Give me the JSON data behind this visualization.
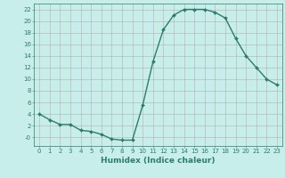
{
  "x": [
    0,
    1,
    2,
    3,
    4,
    5,
    6,
    7,
    8,
    9,
    10,
    11,
    12,
    13,
    14,
    15,
    16,
    17,
    18,
    19,
    20,
    21,
    22,
    23
  ],
  "y": [
    4,
    3,
    2.2,
    2.2,
    1.2,
    1.0,
    0.5,
    -0.3,
    -0.5,
    -0.5,
    5.5,
    13,
    18.5,
    21,
    22,
    22,
    22,
    21.5,
    20.5,
    17,
    14,
    12,
    10,
    9
  ],
  "line_color": "#2d7d6b",
  "marker_color": "#2d7d6b",
  "bg_color": "#c8eeeb",
  "grid_color": "#b0b0b0",
  "xlabel": "Humidex (Indice chaleur)",
  "xlim": [
    -0.5,
    23.5
  ],
  "ylim": [
    -1.5,
    23
  ],
  "yticks": [
    0,
    2,
    4,
    6,
    8,
    10,
    12,
    14,
    16,
    18,
    20,
    22
  ],
  "ytick_labels": [
    "-0",
    "2",
    "4",
    "6",
    "8",
    "10",
    "12",
    "14",
    "16",
    "18",
    "20",
    "22"
  ],
  "xticks": [
    0,
    1,
    2,
    3,
    4,
    5,
    6,
    7,
    8,
    9,
    10,
    11,
    12,
    13,
    14,
    15,
    16,
    17,
    18,
    19,
    20,
    21,
    22,
    23
  ],
  "label_fontsize": 6.5,
  "tick_fontsize": 5.0,
  "line_width": 1.0,
  "marker_size": 2.0
}
